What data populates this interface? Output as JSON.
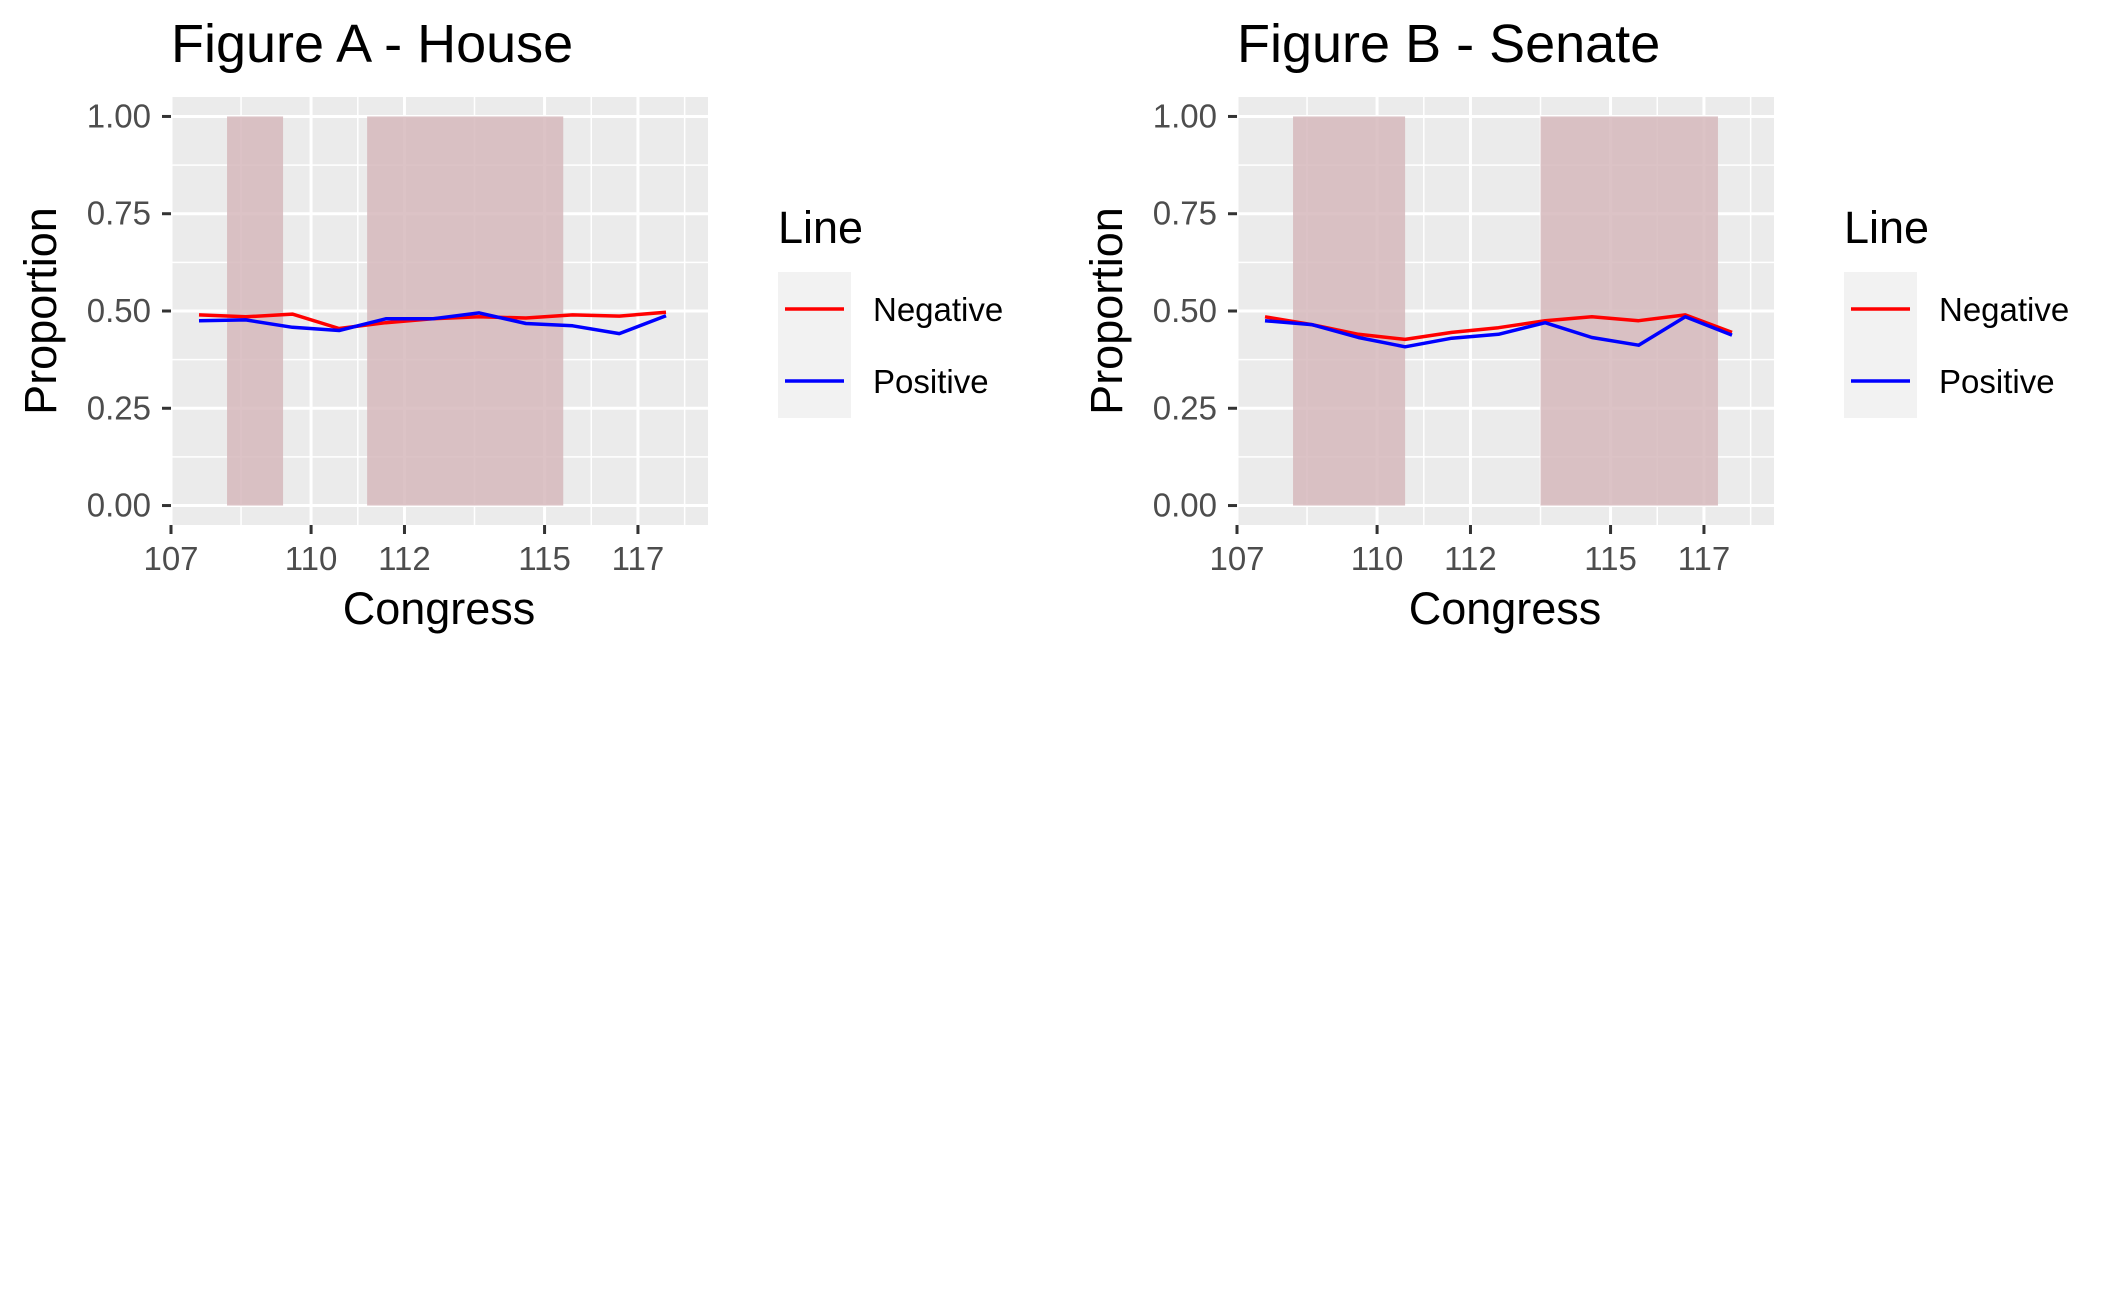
{
  "chart_data": [
    {
      "type": "line",
      "title": "Figure A - House",
      "xlabel": "Congress",
      "ylabel": "Proportion",
      "xlim": [
        107,
        118.5
      ],
      "ylim": [
        -0.05,
        1.05
      ],
      "x_ticks": [
        107,
        110,
        112,
        115,
        117
      ],
      "x_tick_labels": [
        "107",
        "110",
        "112",
        "115",
        "117"
      ],
      "y_ticks": [
        0,
        0.25,
        0.5,
        0.75,
        1
      ],
      "y_tick_labels": [
        "0.00",
        "0.25",
        "0.50",
        "0.75",
        "1.00"
      ],
      "shaded_ranges": [
        [
          108.2,
          109.4
        ],
        [
          111.2,
          115.4
        ]
      ],
      "shade_color": "#d6b8bc",
      "grid": true,
      "legend_title": "Line",
      "legend_placement": "right",
      "x": [
        107.6,
        108.6,
        109.6,
        110.6,
        111.6,
        112.6,
        113.6,
        114.6,
        115.6,
        116.6,
        117.6
      ],
      "series": [
        {
          "name": "Negative",
          "color": "#ff0000",
          "values": [
            0.49,
            0.485,
            0.492,
            0.455,
            0.47,
            0.48,
            0.485,
            0.482,
            0.49,
            0.487,
            0.497
          ]
        },
        {
          "name": "Positive",
          "color": "#0000ff",
          "values": [
            0.475,
            0.477,
            0.458,
            0.45,
            0.48,
            0.48,
            0.495,
            0.468,
            0.462,
            0.442,
            0.488
          ]
        }
      ]
    },
    {
      "type": "line",
      "title": "Figure B - Senate",
      "xlabel": "Congress",
      "ylabel": "Proportion",
      "xlim": [
        107,
        118.5
      ],
      "ylim": [
        -0.05,
        1.05
      ],
      "x_ticks": [
        107,
        110,
        112,
        115,
        117
      ],
      "x_tick_labels": [
        "107",
        "110",
        "112",
        "115",
        "117"
      ],
      "y_ticks": [
        0,
        0.25,
        0.5,
        0.75,
        1
      ],
      "y_tick_labels": [
        "0.00",
        "0.25",
        "0.50",
        "0.75",
        "1.00"
      ],
      "shaded_ranges": [
        [
          108.2,
          110.6
        ],
        [
          113.5,
          117.3
        ]
      ],
      "shade_color": "#d6b8bc",
      "grid": true,
      "legend_title": "Line",
      "legend_placement": "right",
      "x": [
        107.6,
        108.6,
        109.6,
        110.6,
        111.6,
        112.6,
        113.6,
        114.6,
        115.6,
        116.6,
        117.6
      ],
      "series": [
        {
          "name": "Negative",
          "color": "#ff0000",
          "values": [
            0.485,
            0.465,
            0.44,
            0.427,
            0.445,
            0.457,
            0.475,
            0.485,
            0.475,
            0.49,
            0.445
          ]
        },
        {
          "name": "Positive",
          "color": "#0000ff",
          "values": [
            0.475,
            0.465,
            0.432,
            0.408,
            0.43,
            0.44,
            0.47,
            0.432,
            0.412,
            0.485,
            0.438
          ]
        }
      ]
    }
  ]
}
